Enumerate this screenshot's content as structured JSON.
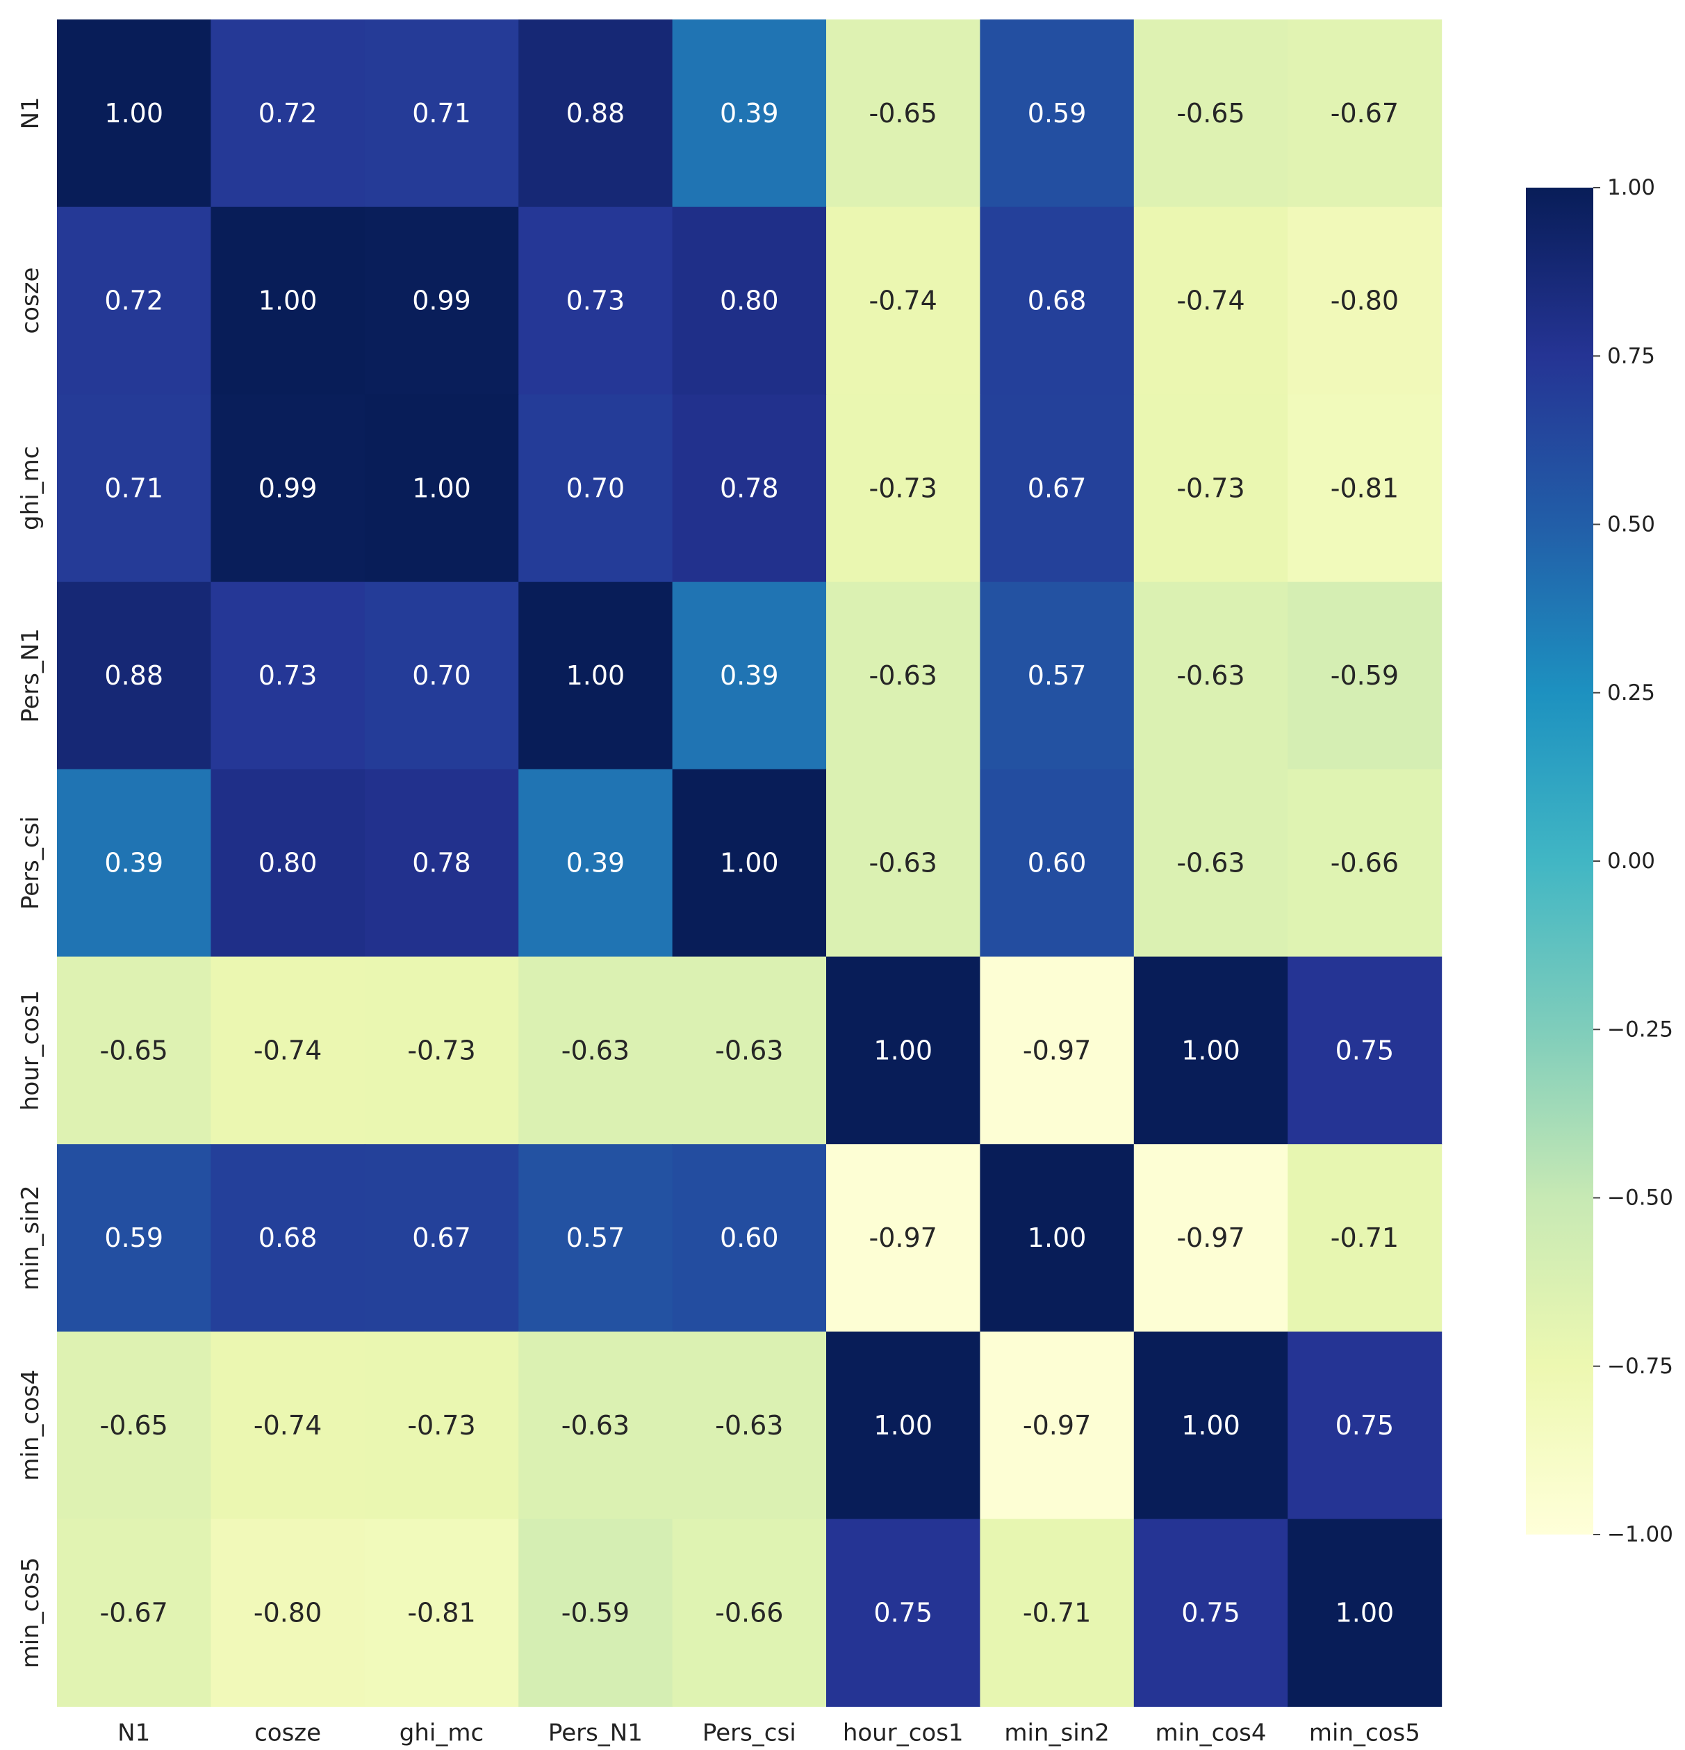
{
  "chart_data": {
    "type": "heatmap",
    "title": "",
    "xlabel": "",
    "ylabel": "",
    "row_labels": [
      "N1",
      "cosze",
      "ghi_mc",
      "Pers_N1",
      "Pers_csi",
      "hour_cos1",
      "min_sin2",
      "min_cos4",
      "min_cos5"
    ],
    "col_labels": [
      "N1",
      "cosze",
      "ghi_mc",
      "Pers_N1",
      "Pers_csi",
      "hour_cos1",
      "min_sin2",
      "min_cos4",
      "min_cos5"
    ],
    "values": [
      [
        1.0,
        0.72,
        0.71,
        0.88,
        0.39,
        -0.65,
        0.59,
        -0.65,
        -0.67
      ],
      [
        0.72,
        1.0,
        0.99,
        0.73,
        0.8,
        -0.74,
        0.68,
        -0.74,
        -0.8
      ],
      [
        0.71,
        0.99,
        1.0,
        0.7,
        0.78,
        -0.73,
        0.67,
        -0.73,
        -0.81
      ],
      [
        0.88,
        0.73,
        0.7,
        1.0,
        0.39,
        -0.63,
        0.57,
        -0.63,
        -0.59
      ],
      [
        0.39,
        0.8,
        0.78,
        0.39,
        1.0,
        -0.63,
        0.6,
        -0.63,
        -0.66
      ],
      [
        -0.65,
        -0.74,
        -0.73,
        -0.63,
        -0.63,
        1.0,
        -0.97,
        1.0,
        0.75
      ],
      [
        0.59,
        0.68,
        0.67,
        0.57,
        0.6,
        -0.97,
        1.0,
        -0.97,
        -0.71
      ],
      [
        -0.65,
        -0.74,
        -0.73,
        -0.63,
        -0.63,
        1.0,
        -0.97,
        1.0,
        0.75
      ],
      [
        -0.67,
        -0.8,
        -0.81,
        -0.59,
        -0.66,
        0.75,
        -0.71,
        0.75,
        1.0
      ]
    ],
    "annotation_format": "2 decimals",
    "colormap": "YlGnBu",
    "vmin": -1.0,
    "vmax": 1.0,
    "colorbar": {
      "ticks": [
        1.0,
        0.75,
        0.5,
        0.25,
        0.0,
        -0.25,
        -0.5,
        -0.75,
        -1.0
      ],
      "tick_labels": [
        "1.00",
        "0.75",
        "0.50",
        "0.25",
        "0.00",
        "−0.25",
        "−0.50",
        "−0.75",
        "−1.00"
      ],
      "placement": "right"
    },
    "grid": false,
    "legend": "none"
  }
}
